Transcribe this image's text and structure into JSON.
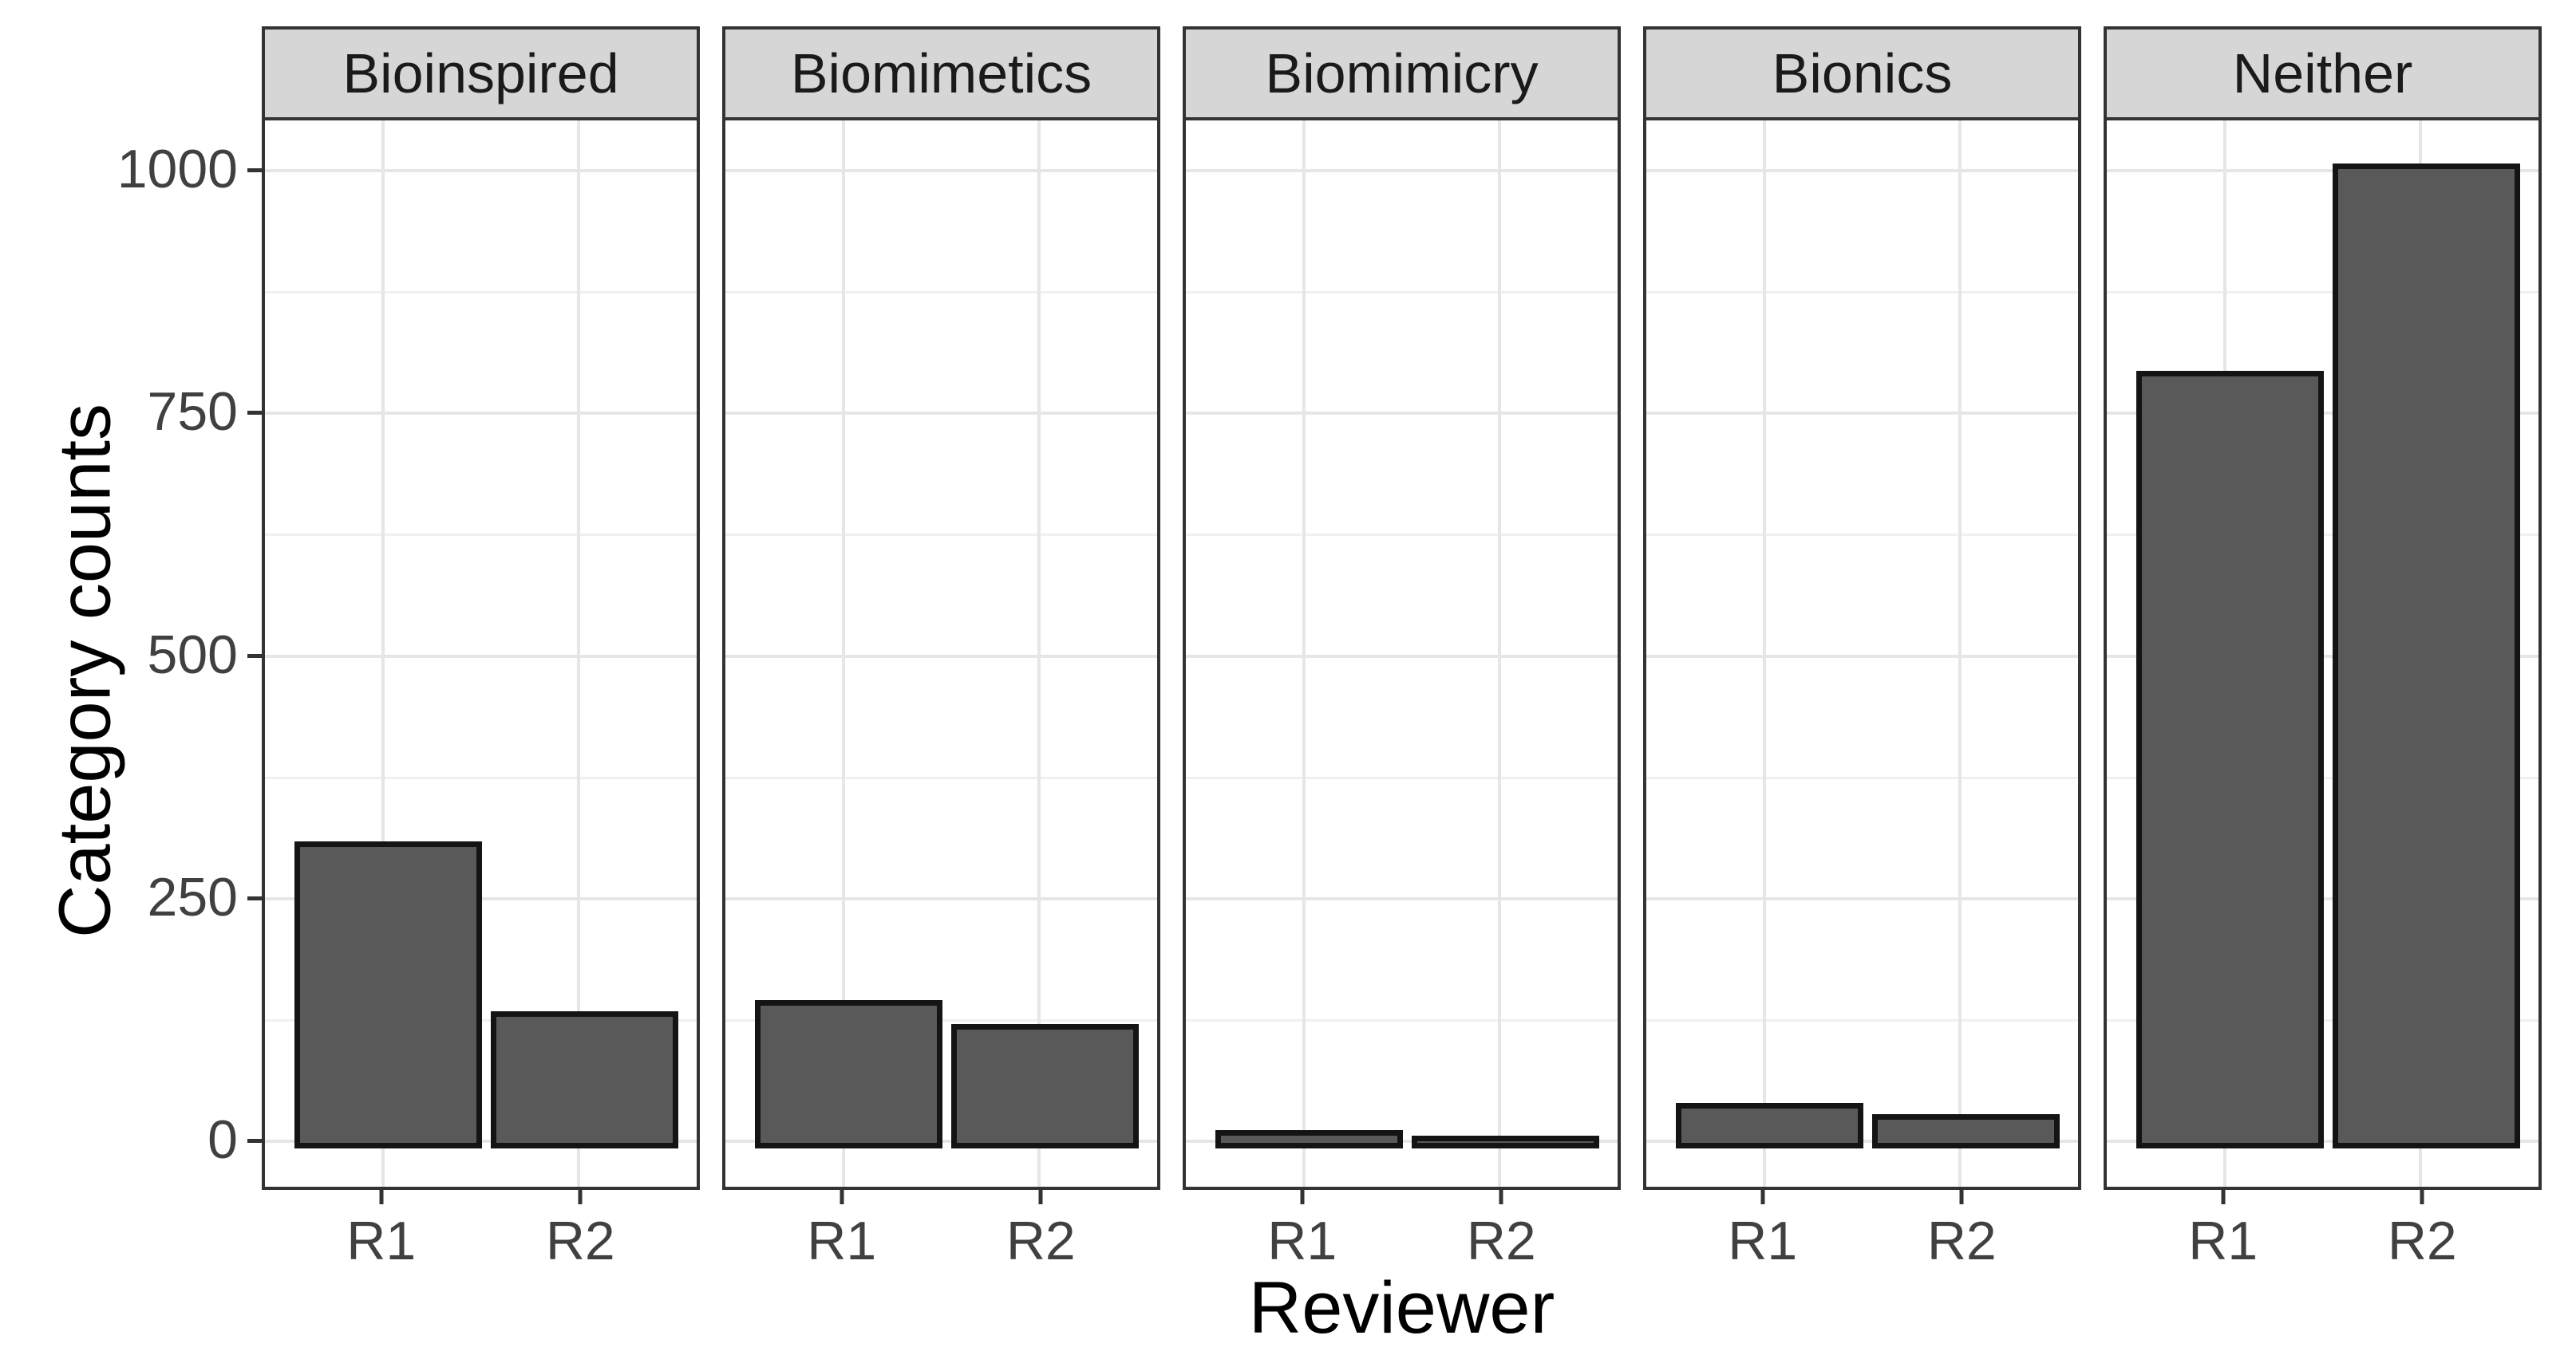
{
  "chart_data": {
    "type": "bar",
    "faceted": true,
    "facet_variable": "Category",
    "title": "",
    "xlabel": "Reviewer",
    "ylabel": "Category counts",
    "categories": [
      "R1",
      "R2"
    ],
    "y_ticks": [
      0,
      250,
      500,
      750,
      1000
    ],
    "ylim": [
      0,
      1050
    ],
    "grid": "major and minor horizontal, major vertical at category positions",
    "legend_position": "none",
    "facets": [
      {
        "label": "Bioinspired",
        "series": [
          {
            "x": "R1",
            "value": 305
          },
          {
            "x": "R2",
            "value": 130
          }
        ]
      },
      {
        "label": "Biomimetics",
        "series": [
          {
            "x": "R1",
            "value": 141
          },
          {
            "x": "R2",
            "value": 117
          }
        ]
      },
      {
        "label": "Biomimicry",
        "series": [
          {
            "x": "R1",
            "value": 7
          },
          {
            "x": "R2",
            "value": 2
          }
        ]
      },
      {
        "label": "Bionics",
        "series": [
          {
            "x": "R1",
            "value": 35
          },
          {
            "x": "R2",
            "value": 24
          }
        ]
      },
      {
        "label": "Neither",
        "series": [
          {
            "x": "R1",
            "value": 790
          },
          {
            "x": "R2",
            "value": 1003
          }
        ]
      }
    ],
    "colors": {
      "bar_fill": "#595959",
      "bar_border": "#141414",
      "strip_fill": "#D6D6D6",
      "strip_border": "#333333",
      "panel_border": "#333333",
      "grid_major": "#E6E6E6",
      "grid_minor": "#F0F0F0",
      "tick_text": "#404040",
      "title_text": "#000000"
    }
  }
}
